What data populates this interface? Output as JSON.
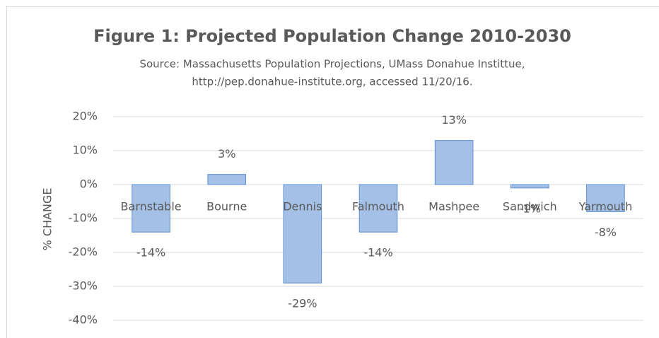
{
  "chart_data": {
    "type": "bar",
    "title": "Figure 1: Projected Population Change 2010-2030",
    "subtitle": [
      "Source: Massachusetts Population Projections, UMass Donahue Instittue,",
      "http://pep.donahue-institute.org, accessed 11/20/16."
    ],
    "y_label": "% CHANGE",
    "categories": [
      "Barnstable",
      "Bourne",
      "Dennis",
      "Falmouth",
      "Mashpee",
      "Sandwich",
      "Yarmouth"
    ],
    "values": [
      -14,
      3,
      -29,
      -14,
      13,
      -1,
      -8
    ],
    "value_labels": [
      "-14%",
      "3%",
      "-29%",
      "-14%",
      "13%",
      "-1%",
      "-8%"
    ],
    "color": "#a4c0e6",
    "edge_color": "#5b8fd4",
    "ylim": [
      -40,
      20
    ],
    "yticks": [
      {
        "value": -40,
        "label": "-40%"
      },
      {
        "value": -30,
        "label": "-30%"
      },
      {
        "value": -20,
        "label": "-20%"
      },
      {
        "value": -10,
        "label": "-10%"
      },
      {
        "value": 0,
        "label": "0%"
      },
      {
        "value": 10,
        "label": "10%"
      },
      {
        "value": 20,
        "label": "20%"
      }
    ],
    "grid": true
  }
}
